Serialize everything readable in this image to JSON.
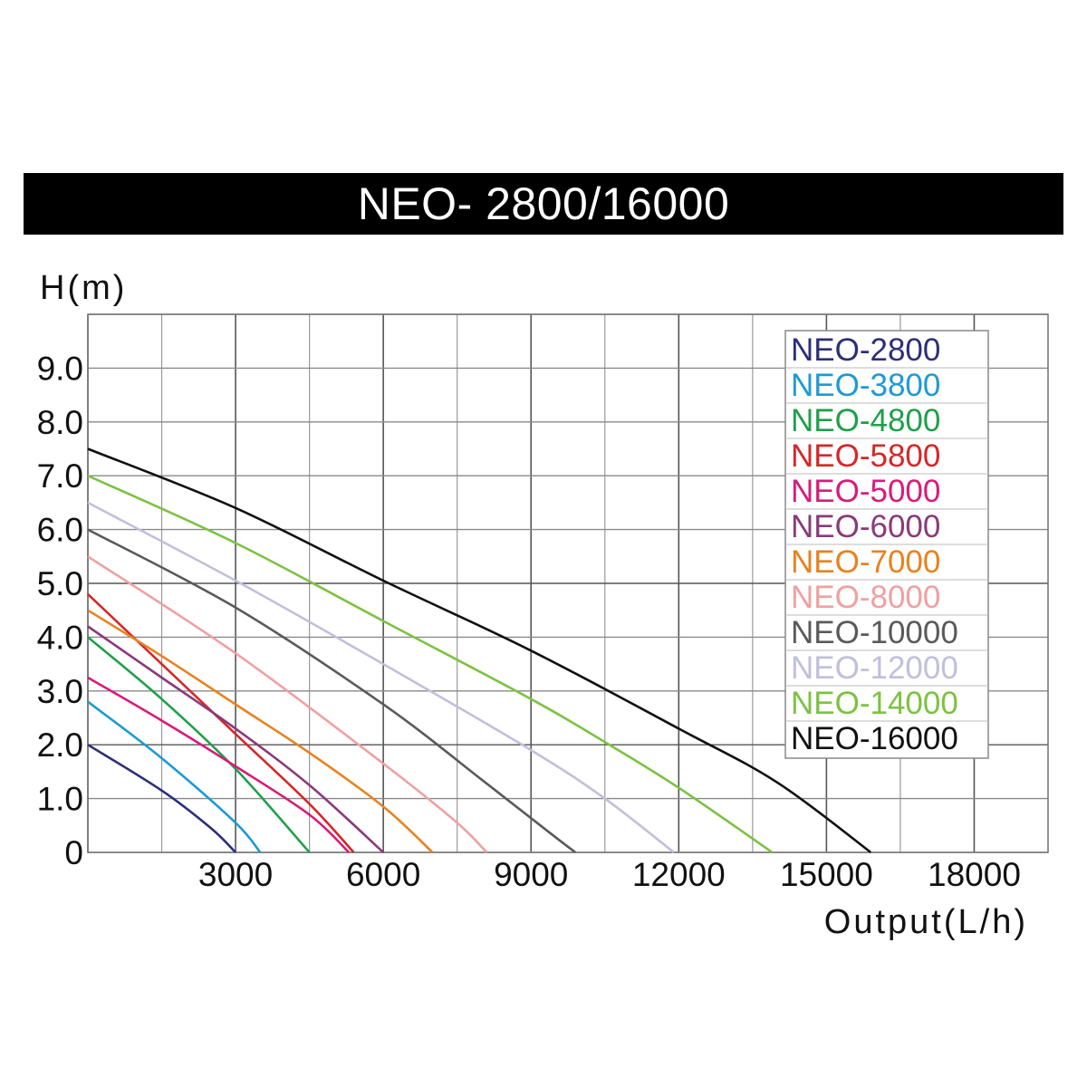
{
  "chart_data": {
    "type": "line",
    "title": "NEO- 2800/16000",
    "xlabel": "Output(L/h)",
    "ylabel": "H(m)",
    "xlim": [
      0,
      19500
    ],
    "ylim": [
      0,
      10
    ],
    "grid": true,
    "legend_position": "top-right",
    "x_ticks": [
      {
        "value": 3000,
        "label": "3000"
      },
      {
        "value": 6000,
        "label": "6000"
      },
      {
        "value": 9000,
        "label": "9000"
      },
      {
        "value": 12000,
        "label": "12000"
      },
      {
        "value": 15000,
        "label": "15000"
      },
      {
        "value": 18000,
        "label": "18000"
      }
    ],
    "y_ticks": [
      {
        "value": 0,
        "label": "0"
      },
      {
        "value": 1,
        "label": "1.0"
      },
      {
        "value": 2,
        "label": "2.0"
      },
      {
        "value": 3,
        "label": "3.0"
      },
      {
        "value": 4,
        "label": "4.0"
      },
      {
        "value": 5,
        "label": "5.0"
      },
      {
        "value": 6,
        "label": "6.0"
      },
      {
        "value": 7,
        "label": "7.0"
      },
      {
        "value": 8,
        "label": "8.0"
      },
      {
        "value": 9,
        "label": "9.0"
      }
    ],
    "series": [
      {
        "name": "NEO-2800",
        "color": "#2b2f7a",
        "x": [
          0,
          1500,
          2500,
          3000
        ],
        "y": [
          2.0,
          1.15,
          0.45,
          0
        ]
      },
      {
        "name": "NEO-3800",
        "color": "#1d9ad6",
        "x": [
          0,
          1500,
          3000,
          3500
        ],
        "y": [
          2.8,
          1.75,
          0.55,
          0
        ]
      },
      {
        "name": "NEO-4800",
        "color": "#1fa04a",
        "x": [
          0,
          1500,
          3000,
          4500
        ],
        "y": [
          4.0,
          2.85,
          1.55,
          0
        ]
      },
      {
        "name": "NEO-5800",
        "color": "#d62728",
        "x": [
          0,
          1500,
          3000,
          4500,
          5400
        ],
        "y": [
          4.8,
          3.5,
          2.2,
          0.9,
          0
        ]
      },
      {
        "name": "NEO-5000",
        "color": "#d81b7a",
        "x": [
          0,
          1500,
          3000,
          4500,
          5300
        ],
        "y": [
          3.25,
          2.45,
          1.6,
          0.7,
          0
        ]
      },
      {
        "name": "NEO-6000",
        "color": "#8a3a7a",
        "x": [
          0,
          1500,
          3000,
          4500,
          6000
        ],
        "y": [
          4.2,
          3.25,
          2.3,
          1.25,
          0
        ]
      },
      {
        "name": "NEO-7000",
        "color": "#e8821e",
        "x": [
          0,
          1500,
          3000,
          4500,
          6000,
          7000
        ],
        "y": [
          4.5,
          3.65,
          2.75,
          1.85,
          0.85,
          0
        ]
      },
      {
        "name": "NEO-8000",
        "color": "#f0a0a0",
        "x": [
          0,
          3000,
          6000,
          7500,
          8100
        ],
        "y": [
          5.5,
          3.7,
          1.65,
          0.55,
          0
        ]
      },
      {
        "name": "NEO-10000",
        "color": "#5a5a5a",
        "x": [
          0,
          3000,
          6000,
          8000,
          9400,
          9900
        ],
        "y": [
          6.0,
          4.55,
          2.75,
          1.35,
          0.35,
          0
        ]
      },
      {
        "name": "NEO-12000",
        "color": "#c0c0dc",
        "x": [
          0,
          3000,
          6000,
          9000,
          10500,
          11900
        ],
        "y": [
          6.5,
          5.05,
          3.5,
          1.9,
          1.0,
          0
        ]
      },
      {
        "name": "NEO-14000",
        "color": "#7cc242",
        "x": [
          0,
          3000,
          6000,
          9000,
          10500,
          12000,
          13900
        ],
        "y": [
          7.0,
          5.75,
          4.3,
          2.85,
          2.05,
          1.2,
          0
        ]
      },
      {
        "name": "NEO-16000",
        "color": "#111111",
        "x": [
          0,
          3000,
          6000,
          9000,
          12000,
          14000,
          15900
        ],
        "y": [
          7.5,
          6.4,
          5.05,
          3.75,
          2.3,
          1.3,
          0
        ]
      }
    ]
  }
}
